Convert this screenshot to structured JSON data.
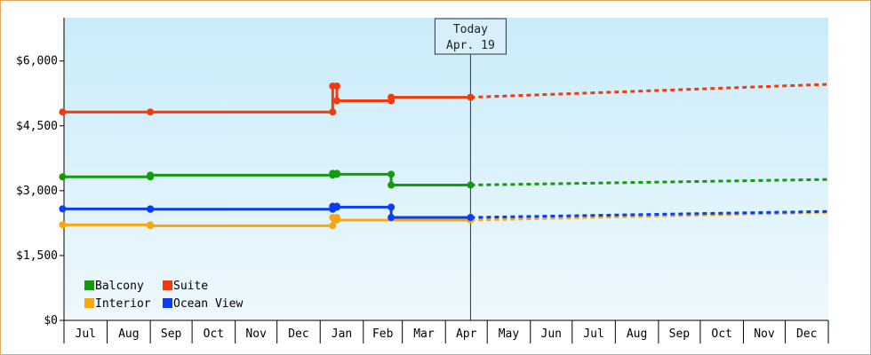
{
  "chart_data": {
    "type": "line",
    "title": "",
    "xlabel": "",
    "ylabel": "",
    "ylim": [
      0,
      7000
    ],
    "y_ticks": [
      0,
      1500,
      3000,
      4500,
      6000
    ],
    "y_tick_labels": [
      "$0",
      "$1,500",
      "$3,000",
      "$4,500",
      "$6,000"
    ],
    "x_range": [
      "2018-07-01",
      "2019-12-31"
    ],
    "x_ticks": [
      "Jul",
      "Aug",
      "Sep",
      "Oct",
      "Nov",
      "Dec",
      "Jan",
      "Feb",
      "Mar",
      "Apr",
      "May",
      "Jun",
      "Jul",
      "Aug",
      "Sep",
      "Oct",
      "Nov",
      "Dec"
    ],
    "today": {
      "date": "2019-04-19",
      "line1": "Today",
      "line2": "Apr. 19"
    },
    "grid": false,
    "legend": {
      "position": "bottom-left"
    },
    "series": [
      {
        "name": "Balcony",
        "color": "#139b0c",
        "values": [
          [
            "2018-06-30",
            3320
          ],
          [
            "2018-09-01",
            3320
          ],
          [
            "2018-09-01",
            3360
          ],
          [
            "2019-01-10",
            3360
          ],
          [
            "2019-01-10",
            3400
          ],
          [
            "2019-01-13",
            3400
          ],
          [
            "2019-01-13",
            3380
          ],
          [
            "2019-02-21",
            3380
          ],
          [
            "2019-02-21",
            3130
          ],
          [
            "2019-04-19",
            3130
          ]
        ],
        "forecast": [
          [
            "2019-04-19",
            3130
          ],
          [
            "2019-12-31",
            3260
          ]
        ]
      },
      {
        "name": "Suite",
        "color": "#f43a0c",
        "values": [
          [
            "2018-06-30",
            4820
          ],
          [
            "2018-09-01",
            4820
          ],
          [
            "2019-01-10",
            4820
          ],
          [
            "2019-01-10",
            5420
          ],
          [
            "2019-01-13",
            5420
          ],
          [
            "2019-01-13",
            5080
          ],
          [
            "2019-02-21",
            5080
          ],
          [
            "2019-02-21",
            5160
          ],
          [
            "2019-04-19",
            5160
          ]
        ],
        "forecast": [
          [
            "2019-04-19",
            5160
          ],
          [
            "2019-12-31",
            5460
          ]
        ]
      },
      {
        "name": "Interior",
        "color": "#f8a80f",
        "values": [
          [
            "2018-06-30",
            2210
          ],
          [
            "2018-09-01",
            2210
          ],
          [
            "2018-09-01",
            2190
          ],
          [
            "2019-01-10",
            2190
          ],
          [
            "2019-01-10",
            2380
          ],
          [
            "2019-01-13",
            2380
          ],
          [
            "2019-01-13",
            2320
          ],
          [
            "2019-04-19",
            2320
          ]
        ],
        "forecast": [
          [
            "2019-04-19",
            2320
          ],
          [
            "2019-12-31",
            2500
          ]
        ]
      },
      {
        "name": "Ocean View",
        "color": "#0a3cf0",
        "values": [
          [
            "2018-06-30",
            2580
          ],
          [
            "2018-09-01",
            2580
          ],
          [
            "2018-09-01",
            2570
          ],
          [
            "2019-01-10",
            2570
          ],
          [
            "2019-01-10",
            2640
          ],
          [
            "2019-01-13",
            2640
          ],
          [
            "2019-01-13",
            2620
          ],
          [
            "2019-02-21",
            2620
          ],
          [
            "2019-02-21",
            2380
          ],
          [
            "2019-04-19",
            2380
          ]
        ],
        "forecast": [
          [
            "2019-04-19",
            2380
          ],
          [
            "2019-12-31",
            2520
          ]
        ]
      }
    ],
    "legend_order": [
      "Balcony",
      "Suite",
      "Interior",
      "Ocean View"
    ]
  }
}
